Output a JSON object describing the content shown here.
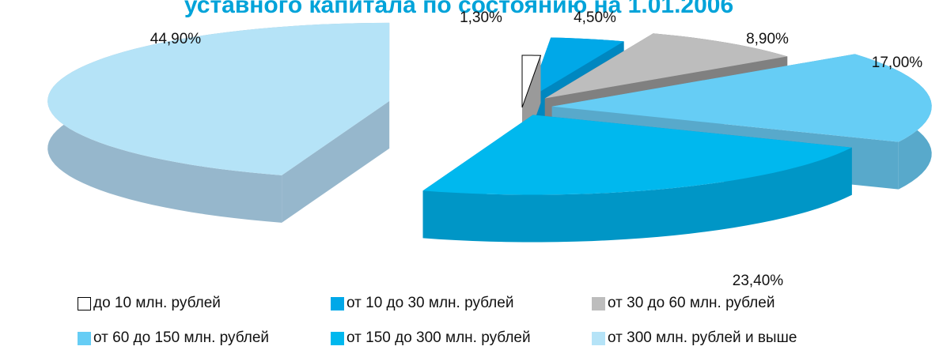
{
  "chart_data": {
    "type": "pie",
    "style": "3d-exploded",
    "title": "уставного капитала по состоянию на 1.01.2006",
    "categories": [
      "до 10 млн. рублей",
      "от 10 до 30 млн. рублей",
      "от 30 до 60 млн. рублей",
      "от 60 до 150 млн. рублей",
      "от 150 до 300 млн. рублей",
      "от 300 млн. рублей и выше"
    ],
    "values": [
      1.3,
      4.5,
      8.9,
      17.0,
      23.4,
      44.9
    ],
    "data_labels": [
      "1,30%",
      "4,50%",
      "8,90%",
      "17,00%",
      "23,40%",
      "44,90%"
    ],
    "colors": [
      "#ffffff",
      "#00a8e8",
      "#bdbdbd",
      "#66cdf5",
      "#00b8ee",
      "#b5e3f7"
    ],
    "legend_position": "bottom"
  }
}
